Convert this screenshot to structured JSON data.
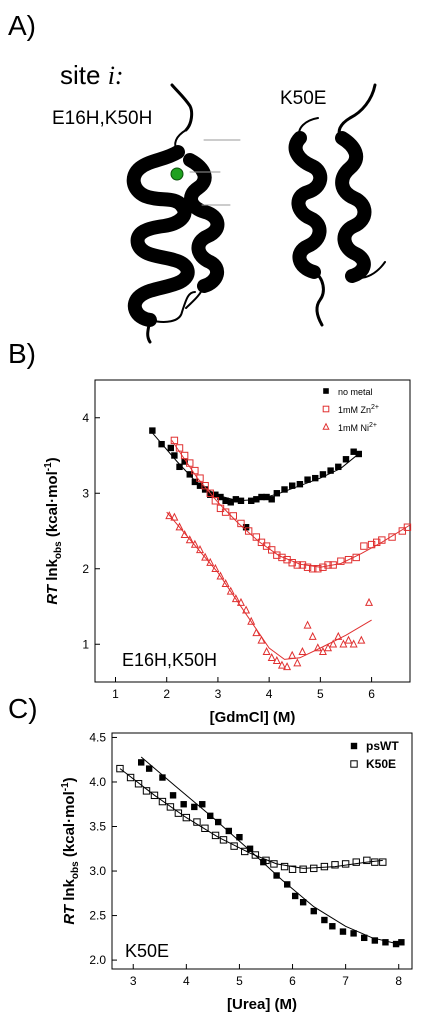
{
  "panel_a": {
    "letter": "A)",
    "site_prefix": "site ",
    "site_var": "i:",
    "left_label": "E16H,K50H",
    "right_label": "K50E",
    "metal_color": "#1fa01f"
  },
  "chart_data": [
    {
      "type": "scatter",
      "panel_letter": "B)",
      "xlabel": "[GdmCl] (M)",
      "ylabel_parts": [
        "RT",
        " lnk",
        "obs",
        " (kcal·mol",
        "-1",
        ")"
      ],
      "annotation": "E16H,K50H",
      "xlim": [
        0.6,
        6.75
      ],
      "ylim": [
        0.5,
        4.5
      ],
      "xticks": [
        1,
        2,
        3,
        4,
        5,
        6
      ],
      "yticks": [
        1,
        2,
        3,
        4
      ],
      "legend_position": "top-right",
      "series": [
        {
          "name": "no metal",
          "marker": "filled-square",
          "color": "#000000",
          "points": [
            [
              1.72,
              3.83
            ],
            [
              1.9,
              3.65
            ],
            [
              2.08,
              3.6
            ],
            [
              2.15,
              3.5
            ],
            [
              2.25,
              3.35
            ],
            [
              2.35,
              3.42
            ],
            [
              2.45,
              3.25
            ],
            [
              2.55,
              3.15
            ],
            [
              2.65,
              3.1
            ],
            [
              2.75,
              3.05
            ],
            [
              2.85,
              2.98
            ],
            [
              2.95,
              2.98
            ],
            [
              3.05,
              2.95
            ],
            [
              3.15,
              2.9
            ],
            [
              3.25,
              2.88
            ],
            [
              3.35,
              2.92
            ],
            [
              3.45,
              2.9
            ],
            [
              3.55,
              2.55
            ],
            [
              3.65,
              2.9
            ],
            [
              3.75,
              2.92
            ],
            [
              3.85,
              2.95
            ],
            [
              3.95,
              2.95
            ],
            [
              4.05,
              2.92
            ],
            [
              4.15,
              3.0
            ],
            [
              4.3,
              3.05
            ],
            [
              4.45,
              3.1
            ],
            [
              4.6,
              3.12
            ],
            [
              4.75,
              3.18
            ],
            [
              4.9,
              3.2
            ],
            [
              5.05,
              3.25
            ],
            [
              5.2,
              3.3
            ],
            [
              5.35,
              3.35
            ],
            [
              5.5,
              3.45
            ],
            [
              5.65,
              3.55
            ],
            [
              5.75,
              3.52
            ]
          ],
          "fit": [
            [
              1.72,
              3.8
            ],
            [
              2.2,
              3.42
            ],
            [
              2.6,
              3.13
            ],
            [
              3.0,
              2.97
            ],
            [
              3.4,
              2.9
            ],
            [
              3.8,
              2.92
            ],
            [
              4.2,
              3.0
            ],
            [
              4.6,
              3.1
            ],
            [
              5.0,
              3.2
            ],
            [
              5.4,
              3.33
            ],
            [
              5.8,
              3.55
            ]
          ]
        },
        {
          "name": "1mM Zn",
          "name_sup": "2+",
          "marker": "open-square",
          "color": "#e03030",
          "points": [
            [
              2.15,
              3.7
            ],
            [
              2.25,
              3.6
            ],
            [
              2.35,
              3.5
            ],
            [
              2.45,
              3.4
            ],
            [
              2.55,
              3.3
            ],
            [
              2.65,
              3.2
            ],
            [
              2.75,
              3.1
            ],
            [
              2.85,
              3.0
            ],
            [
              2.95,
              2.9
            ],
            [
              3.05,
              2.8
            ],
            [
              3.15,
              2.75
            ],
            [
              3.3,
              2.7
            ],
            [
              3.45,
              2.6
            ],
            [
              3.6,
              2.5
            ],
            [
              3.75,
              2.42
            ],
            [
              3.85,
              2.35
            ],
            [
              3.95,
              2.3
            ],
            [
              4.05,
              2.25
            ],
            [
              4.15,
              2.18
            ],
            [
              4.25,
              2.15
            ],
            [
              4.35,
              2.12
            ],
            [
              4.45,
              2.08
            ],
            [
              4.55,
              2.05
            ],
            [
              4.65,
              2.05
            ],
            [
              4.75,
              2.02
            ],
            [
              4.85,
              2.0
            ],
            [
              4.95,
              2.0
            ],
            [
              5.05,
              2.02
            ],
            [
              5.15,
              2.05
            ],
            [
              5.25,
              2.05
            ],
            [
              5.4,
              2.1
            ],
            [
              5.55,
              2.12
            ],
            [
              5.7,
              2.15
            ],
            [
              5.85,
              2.3
            ],
            [
              6.0,
              2.32
            ],
            [
              6.1,
              2.35
            ],
            [
              6.2,
              2.38
            ],
            [
              6.4,
              2.42
            ],
            [
              6.6,
              2.5
            ],
            [
              6.7,
              2.55
            ]
          ],
          "fit": [
            [
              2.1,
              3.7
            ],
            [
              2.6,
              3.2
            ],
            [
              3.0,
              2.88
            ],
            [
              3.4,
              2.6
            ],
            [
              3.8,
              2.36
            ],
            [
              4.2,
              2.17
            ],
            [
              4.6,
              2.06
            ],
            [
              5.0,
              2.02
            ],
            [
              5.4,
              2.07
            ],
            [
              5.8,
              2.2
            ],
            [
              6.2,
              2.35
            ],
            [
              6.75,
              2.58
            ]
          ]
        },
        {
          "name": "1mM Ni",
          "name_sup": "2+",
          "marker": "open-triangle",
          "color": "#e03030",
          "points": [
            [
              2.05,
              2.7
            ],
            [
              2.15,
              2.68
            ],
            [
              2.25,
              2.55
            ],
            [
              2.35,
              2.45
            ],
            [
              2.45,
              2.38
            ],
            [
              2.55,
              2.32
            ],
            [
              2.65,
              2.25
            ],
            [
              2.75,
              2.15
            ],
            [
              2.85,
              2.08
            ],
            [
              2.95,
              2.0
            ],
            [
              3.05,
              1.9
            ],
            [
              3.15,
              1.8
            ],
            [
              3.25,
              1.7
            ],
            [
              3.35,
              1.6
            ],
            [
              3.45,
              1.55
            ],
            [
              3.55,
              1.45
            ],
            [
              3.65,
              1.3
            ],
            [
              3.75,
              1.15
            ],
            [
              3.85,
              1.05
            ],
            [
              3.95,
              0.9
            ],
            [
              4.05,
              0.82
            ],
            [
              4.15,
              0.78
            ],
            [
              4.25,
              0.72
            ],
            [
              4.35,
              0.7
            ],
            [
              4.45,
              0.85
            ],
            [
              4.55,
              0.75
            ],
            [
              4.65,
              0.9
            ],
            [
              4.75,
              1.25
            ],
            [
              4.85,
              1.1
            ],
            [
              4.95,
              0.95
            ],
            [
              5.05,
              0.9
            ],
            [
              5.15,
              0.95
            ],
            [
              5.25,
              1.0
            ],
            [
              5.35,
              1.1
            ],
            [
              5.45,
              1.0
            ],
            [
              5.55,
              1.05
            ],
            [
              5.65,
              1.0
            ],
            [
              5.8,
              1.05
            ],
            [
              5.95,
              1.55
            ]
          ],
          "fit": [
            [
              2.0,
              2.75
            ],
            [
              2.5,
              2.35
            ],
            [
              3.0,
              1.95
            ],
            [
              3.5,
              1.45
            ],
            [
              4.0,
              0.95
            ],
            [
              4.3,
              0.8
            ],
            [
              4.6,
              0.82
            ],
            [
              5.0,
              0.95
            ],
            [
              5.5,
              1.12
            ],
            [
              6.0,
              1.32
            ]
          ]
        }
      ]
    },
    {
      "type": "scatter",
      "panel_letter": "C)",
      "xlabel": "[Urea] (M)",
      "ylabel_parts": [
        "RT",
        " lnk",
        "obs",
        " (kcal·mol",
        "-1",
        ")"
      ],
      "annotation": "K50E",
      "xlim": [
        2.6,
        8.25
      ],
      "ylim": [
        1.9,
        4.55
      ],
      "xticks": [
        3,
        4,
        5,
        6,
        7,
        8
      ],
      "yticks": [
        2.0,
        2.5,
        3.0,
        3.5,
        4.0,
        4.5
      ],
      "legend_position": "top-right",
      "series": [
        {
          "name": "psWT",
          "marker": "filled-square",
          "color": "#000000",
          "points": [
            [
              3.15,
              4.22
            ],
            [
              3.3,
              4.15
            ],
            [
              3.55,
              4.05
            ],
            [
              3.75,
              3.85
            ],
            [
              3.95,
              3.75
            ],
            [
              4.15,
              3.72
            ],
            [
              4.3,
              3.75
            ],
            [
              4.45,
              3.62
            ],
            [
              4.6,
              3.55
            ],
            [
              4.8,
              3.45
            ],
            [
              5.0,
              3.38
            ],
            [
              5.2,
              3.25
            ],
            [
              5.45,
              3.1
            ],
            [
              5.7,
              2.95
            ],
            [
              5.9,
              2.85
            ],
            [
              6.05,
              2.72
            ],
            [
              6.2,
              2.65
            ],
            [
              6.4,
              2.55
            ],
            [
              6.6,
              2.45
            ],
            [
              6.75,
              2.38
            ],
            [
              6.95,
              2.32
            ],
            [
              7.15,
              2.3
            ],
            [
              7.35,
              2.25
            ],
            [
              7.55,
              2.22
            ],
            [
              7.75,
              2.2
            ],
            [
              7.95,
              2.18
            ],
            [
              8.05,
              2.2
            ]
          ],
          "fit": [
            [
              3.15,
              4.28
            ],
            [
              3.8,
              3.95
            ],
            [
              4.5,
              3.6
            ],
            [
              5.2,
              3.23
            ],
            [
              5.8,
              2.9
            ],
            [
              6.4,
              2.6
            ],
            [
              7.0,
              2.38
            ],
            [
              7.5,
              2.25
            ],
            [
              8.0,
              2.18
            ]
          ]
        },
        {
          "name": "K50E",
          "marker": "open-square",
          "color": "#000000",
          "points": [
            [
              2.75,
              4.15
            ],
            [
              2.95,
              4.05
            ],
            [
              3.1,
              3.98
            ],
            [
              3.25,
              3.9
            ],
            [
              3.4,
              3.85
            ],
            [
              3.55,
              3.78
            ],
            [
              3.7,
              3.72
            ],
            [
              3.85,
              3.65
            ],
            [
              4.0,
              3.6
            ],
            [
              4.2,
              3.55
            ],
            [
              4.35,
              3.48
            ],
            [
              4.55,
              3.4
            ],
            [
              4.7,
              3.35
            ],
            [
              4.9,
              3.28
            ],
            [
              5.1,
              3.22
            ],
            [
              5.3,
              3.18
            ],
            [
              5.5,
              3.12
            ],
            [
              5.65,
              3.08
            ],
            [
              5.85,
              3.05
            ],
            [
              6.0,
              3.02
            ],
            [
              6.2,
              3.02
            ],
            [
              6.4,
              3.03
            ],
            [
              6.6,
              3.05
            ],
            [
              6.8,
              3.07
            ],
            [
              7.0,
              3.08
            ],
            [
              7.2,
              3.1
            ],
            [
              7.4,
              3.12
            ],
            [
              7.55,
              3.1
            ],
            [
              7.7,
              3.1
            ]
          ],
          "fit": [
            [
              2.75,
              4.15
            ],
            [
              3.4,
              3.85
            ],
            [
              4.0,
              3.6
            ],
            [
              4.6,
              3.38
            ],
            [
              5.2,
              3.2
            ],
            [
              5.7,
              3.08
            ],
            [
              6.2,
              3.03
            ],
            [
              6.8,
              3.05
            ],
            [
              7.4,
              3.1
            ],
            [
              7.7,
              3.12
            ]
          ]
        }
      ]
    }
  ]
}
